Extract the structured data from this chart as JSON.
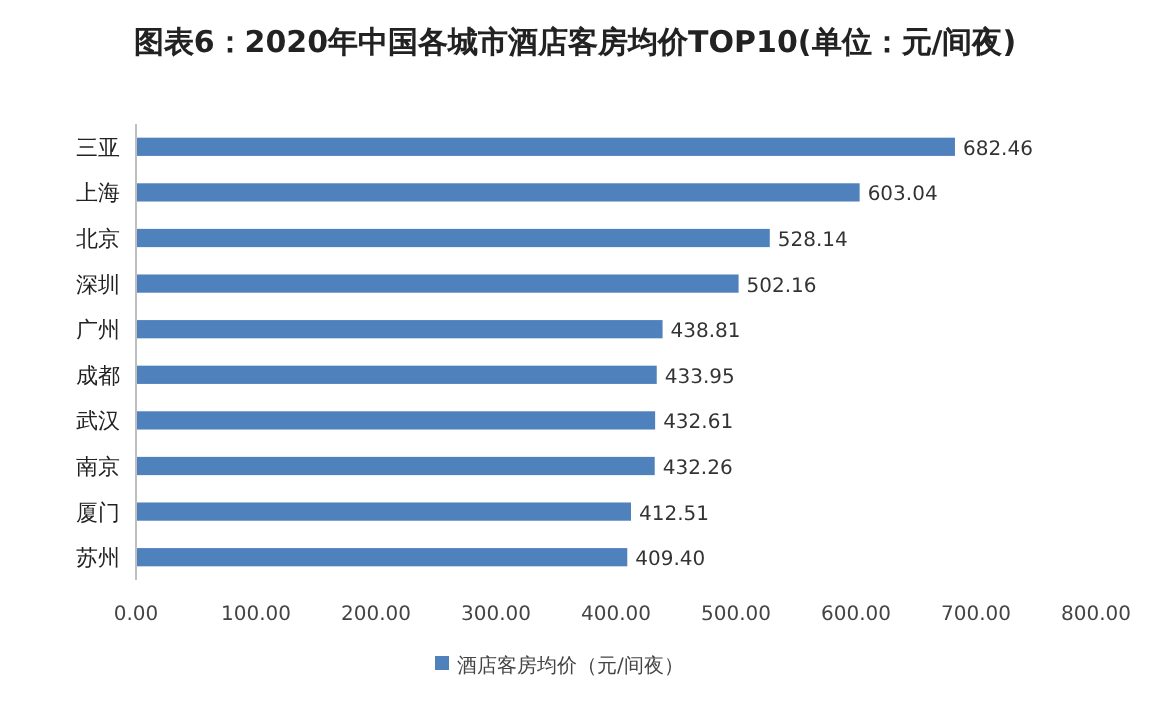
{
  "chart_data": {
    "type": "bar",
    "orientation": "horizontal",
    "title": "图表6：2020年中国各城市酒店客房均价TOP10(单位：元/间夜)",
    "categories": [
      "三亚",
      "上海",
      "北京",
      "深圳",
      "广州",
      "成都",
      "武汉",
      "南京",
      "厦门",
      "苏州"
    ],
    "series": [
      {
        "name": "酒店客房均价（元/间夜）",
        "color": "#4f81bd",
        "values": [
          682.46,
          603.04,
          528.14,
          502.16,
          438.81,
          433.95,
          432.61,
          432.26,
          412.51,
          409.4
        ],
        "value_labels": [
          "682.46",
          "603.04",
          "528.14",
          "502.16",
          "438.81",
          "433.95",
          "432.61",
          "432.26",
          "412.51",
          "409.40"
        ]
      }
    ],
    "xlim": [
      0,
      800
    ],
    "xticks": [
      {
        "value": 0,
        "label": "0.00"
      },
      {
        "value": 100,
        "label": "100.00"
      },
      {
        "value": 200,
        "label": "200.00"
      },
      {
        "value": 300,
        "label": "300.00"
      },
      {
        "value": 400,
        "label": "400.00"
      },
      {
        "value": 500,
        "label": "500.00"
      },
      {
        "value": 600,
        "label": "600.00"
      },
      {
        "value": 700,
        "label": "700.00"
      },
      {
        "value": 800,
        "label": "800.00"
      }
    ],
    "legend": "bottom"
  }
}
